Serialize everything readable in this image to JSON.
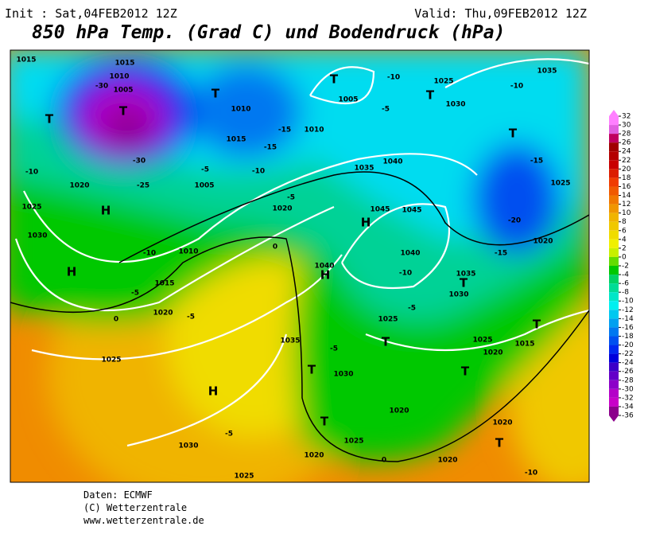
{
  "header": {
    "init": "Init : Sat,04FEB2012 12Z",
    "valid": "Valid: Thu,09FEB2012 12Z",
    "title": "850 hPa Temp. (Grad C) und Bodendruck (hPa)"
  },
  "footer": {
    "source": "Daten: ECMWF",
    "copyright": "(C) Wetterzentrale",
    "url": "www.wetterzentrale.de"
  },
  "colorbar": {
    "ticks": [
      32,
      30,
      28,
      26,
      24,
      22,
      20,
      18,
      16,
      14,
      12,
      10,
      8,
      6,
      4,
      2,
      0,
      -2,
      -4,
      -6,
      -8,
      -10,
      -12,
      -14,
      -16,
      -18,
      -20,
      -22,
      -24,
      -26,
      -28,
      -30,
      -32,
      -34,
      -36
    ],
    "colors": [
      "#ff80ff",
      "#e060e0",
      "#c00060",
      "#a00000",
      "#b40000",
      "#c80000",
      "#dc1e00",
      "#f03c00",
      "#f05a00",
      "#f07800",
      "#f09600",
      "#f0b400",
      "#f0c800",
      "#f0dc00",
      "#f0f000",
      "#c8f000",
      "#64dc00",
      "#00c800",
      "#00d264",
      "#00dc96",
      "#00e6c8",
      "#00f0f0",
      "#00c8f0",
      "#00a0f0",
      "#0078f0",
      "#0050f0",
      "#0028f0",
      "#0000dc",
      "#3c00c8",
      "#6400c8",
      "#8c00c8",
      "#b400c8",
      "#c800c8",
      "#8c008c"
    ]
  },
  "map_labels": [
    "1015",
    "1015",
    "1010",
    "1005",
    "-30",
    "T",
    "T",
    "-30",
    "-25",
    "-10",
    "1020",
    "1025",
    "H",
    "1030",
    "H",
    "-10",
    "1010",
    "1015",
    "-5",
    "1020",
    "0",
    "1025",
    "H",
    "1030",
    "1025",
    "1020",
    "1035",
    "1040",
    "H",
    "H",
    "1045",
    "1045",
    "1035",
    "1040",
    "1040",
    "1035",
    "T",
    "1030",
    "T",
    "-15",
    "-20",
    "1025",
    "1020",
    "-15",
    "T",
    "1005",
    "-10",
    "1025",
    "T",
    "1030",
    "-10",
    "1035",
    "1010",
    "-5",
    "T",
    "1010",
    "1015",
    "-15",
    "-15",
    "-10",
    "1005",
    "-5",
    "1020",
    "-5",
    "0",
    "-10",
    "-5",
    "1025",
    "T",
    "-5",
    "T",
    "1030",
    "T",
    "1020",
    "1025",
    "0",
    "1020",
    "T",
    "1020",
    "1025",
    "1015",
    "T",
    "1020",
    "T",
    "-10",
    "-5",
    "-5"
  ]
}
